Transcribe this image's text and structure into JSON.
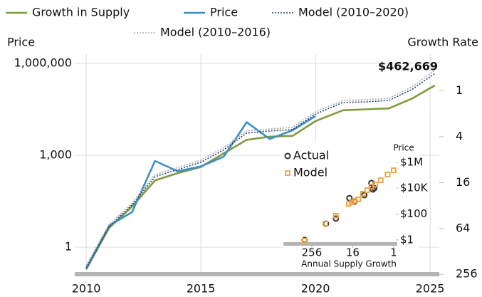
{
  "chart_data": [
    {
      "type": "line",
      "ylabel": "Price",
      "y2label": "Growth Rate",
      "xlim": [
        2009.5,
        2025.4
      ],
      "xticks": [
        2010,
        2015,
        2020,
        2025
      ],
      "ylim": [
        0.1,
        2000000
      ],
      "yscale": "log",
      "yticks": [
        1,
        {
          "value": 1000,
          "label": "1,000"
        },
        {
          "value": 1000000,
          "label": "1,000,000"
        }
      ],
      "y2lim": [
        284,
        0.33
      ],
      "y2scale": "log",
      "y2ticks": [
        1,
        4,
        16,
        64,
        256
      ],
      "grid": true,
      "series": [
        {
          "name": "Growth in Supply",
          "color": "#7d9b3c",
          "style": "solid",
          "axis": "y2",
          "x": [
            2010,
            2011,
            2012,
            2013,
            2014,
            2015,
            2016,
            2017,
            2018,
            2019,
            2020,
            2021.2,
            2022.2,
            2023.2,
            2024.2,
            2025.2
          ],
          "values": [
            220,
            63,
            33,
            15,
            12,
            10,
            6.6,
            4.4,
            4.0,
            3.9,
            2.5,
            1.8,
            1.75,
            1.7,
            1.27,
            0.85
          ]
        },
        {
          "name": "Price",
          "color": "#3a8fc8",
          "style": "solid",
          "x": [
            2010,
            2011,
            2012,
            2013,
            2014,
            2015,
            2016,
            2017,
            2018,
            2019,
            2020
          ],
          "values": [
            0.2,
            5,
            14,
            650,
            300,
            430,
            900,
            12000,
            3400,
            6500,
            19000
          ]
        },
        {
          "name": "Model (2010–2020)",
          "color": "#1f3f73",
          "style": "dotted",
          "x": [
            2010,
            2011,
            2012,
            2013,
            2014,
            2015,
            2016,
            2017,
            2018,
            2019,
            2020,
            2021.2,
            2022.2,
            2023.2,
            2024.2,
            2025.2
          ],
          "values": [
            0.21,
            4.7,
            24,
            200,
            340,
            590,
            1500,
            5300,
            6200,
            6900,
            22000,
            53000,
            55000,
            62000,
            140000,
            462669
          ]
        },
        {
          "name": "Model (2010–2016)",
          "color": "#a8a8a8",
          "style": "dotted",
          "x": [
            2010,
            2011,
            2012,
            2013,
            2014,
            2015,
            2016,
            2017,
            2018,
            2019,
            2020,
            2021.2,
            2022.2,
            2023.2,
            2024.2,
            2025.2
          ],
          "values": [
            0.25,
            5.5,
            28,
            235,
            400,
            690,
            1800,
            6200,
            7200,
            8100,
            26000,
            62000,
            65000,
            72000,
            170000,
            590000
          ]
        }
      ],
      "annotation": {
        "text": "$462,669",
        "color": "#7d9b3c"
      }
    },
    {
      "type": "scatter",
      "xlabel": "Annual Supply Growth",
      "ylabel": "Price",
      "xlim": [
        1600,
        0.27
      ],
      "xscale": "log",
      "xticks": [
        256,
        16,
        1
      ],
      "ylim": [
        0.36,
        18000000
      ],
      "yscale": "log",
      "yticks": [
        {
          "value": 1,
          "label": "$1"
        },
        {
          "value": 100,
          "label": "$100"
        },
        {
          "value": 10000,
          "label": "$10K"
        },
        {
          "value": 1000000,
          "label": "$1M"
        }
      ],
      "series": [
        {
          "name": "Actual",
          "color": "#333333",
          "marker": "circle",
          "x": [
            415,
            98,
            50,
            20,
            14,
            7.3,
            4.5,
            4.1,
            3.7
          ],
          "values": [
            1,
            18,
            45,
            1700,
            930,
            2900,
            25000,
            8000,
            10000
          ]
        },
        {
          "name": "Model",
          "color": "#f0a040",
          "marker": "square",
          "x": [
            415,
            102,
            50,
            21,
            17,
            14,
            11,
            8,
            6,
            4.5,
            3.5,
            2.4,
            1.5,
            1
          ],
          "values": [
            0.9,
            18,
            74,
            630,
            820,
            1050,
            1350,
            3700,
            7000,
            13000,
            19000,
            41000,
            113000,
            240000
          ]
        }
      ]
    }
  ]
}
